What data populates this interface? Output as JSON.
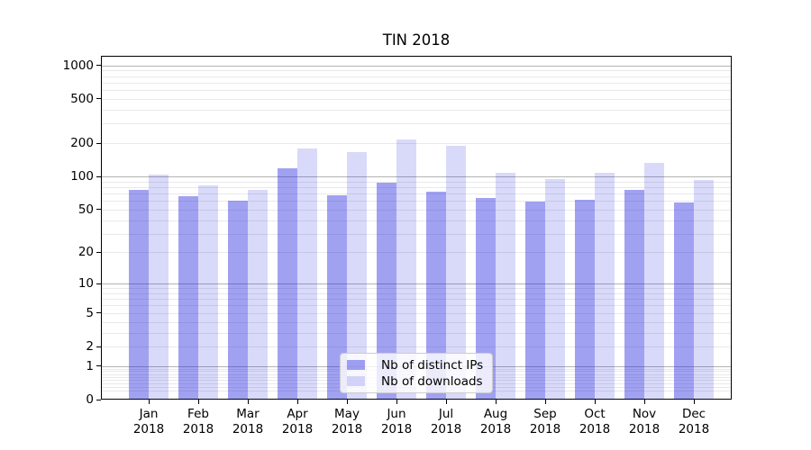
{
  "title": "TIN 2018",
  "legend": {
    "items": [
      {
        "label": "Nb of distinct IPs",
        "color": "rgba(31,31,224,0.42)",
        "color_on_white": "#a1a1f2"
      },
      {
        "label": "Nb of downloads",
        "color": "rgba(31,31,224,0.17)",
        "color_on_white": "#d9d9fa"
      }
    ],
    "position": "inside lower center"
  },
  "chart_data": {
    "type": "bar",
    "title": "TIN 2018",
    "categories": [
      "Jan 2018",
      "Feb 2018",
      "Mar 2018",
      "Apr 2018",
      "May 2018",
      "Jun 2018",
      "Jul 2018",
      "Aug 2018",
      "Sep 2018",
      "Oct 2018",
      "Nov 2018",
      "Dec 2018"
    ],
    "series": [
      {
        "name": "Nb of distinct IPs",
        "color": "rgba(31,31,224,0.42)",
        "values": [
          76,
          66,
          60,
          119,
          67,
          87,
          73,
          64,
          59,
          61,
          76,
          58
        ]
      },
      {
        "name": "Nb of downloads",
        "color": "rgba(31,31,224,0.17)",
        "values": [
          103,
          83,
          75,
          179,
          165,
          216,
          190,
          107,
          94,
          108,
          133,
          93
        ]
      }
    ],
    "xlabel": "",
    "ylabel": "",
    "yscale": "symlog (log10 of 1+value)",
    "yticks": [
      1000,
      500,
      200,
      100,
      50,
      20,
      10,
      5,
      2,
      1,
      0
    ],
    "ylim": [
      0,
      1220
    ],
    "grid": {
      "major_gridlines_at": [
        1,
        10,
        100,
        1000
      ],
      "minor_gridlines": "mantissas 2-9 of each decade from 0.1 to 1000",
      "major_color": "#b3b3b3",
      "minor_color": "#e9e9e9"
    },
    "legend_position": "lower center"
  }
}
